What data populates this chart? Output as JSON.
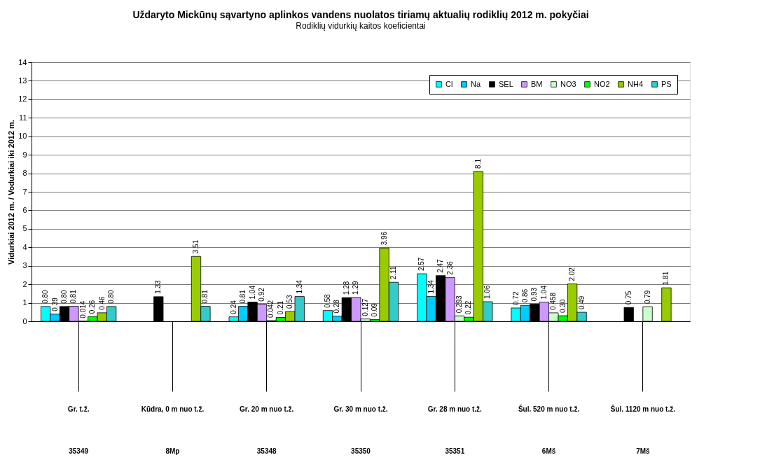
{
  "chart_data": {
    "type": "bar",
    "title": "Uždaryto Mickūnų sąvartyno aplinkos vandens nuolatos tiriamų aktualių rodiklių 2012 m. pokyčiai",
    "subtitle": "Rodiklių vidurkių kaitos koeficientai",
    "ylabel": "Vidurkiai  2012 m. / Vodurkiai iki 2012 m.",
    "categories": [
      "Gr. t.ž.\n35349",
      "Kūdra, 0 m nuo t.ž.\n8Mp",
      "Gr. 20 m nuo t.ž.\n35348",
      "Gr. 30 m nuo t.ž.\n35350",
      "Gr. 28 m nuo t.ž.\n35351",
      "Šul. 520 m nuo t.ž.\n6Mš",
      "Šul. 1120 m nuo t.ž.\n7Mš"
    ],
    "series": [
      {
        "name": "Cl",
        "color": "#00ffff",
        "values": [
          0.8,
          null,
          0.24,
          0.58,
          2.57,
          0.72,
          null
        ],
        "value_labels": [
          "0.80",
          null,
          "0.24",
          "0.58",
          "2.57",
          "0.72",
          null
        ]
      },
      {
        "name": "Na",
        "color": "#00ccff",
        "values": [
          0.39,
          null,
          0.81,
          0.28,
          1.34,
          0.86,
          null
        ],
        "value_labels": [
          "0.39",
          null,
          "0.81",
          "0.28",
          "1.34",
          "0.86",
          null
        ]
      },
      {
        "name": "SEL",
        "color": "#000000",
        "values": [
          0.8,
          1.33,
          1.04,
          1.28,
          2.47,
          0.93,
          0.75
        ],
        "value_labels": [
          "0.80",
          "1.33",
          "1.04",
          "1.28",
          "2.47",
          "0.93",
          "0.75"
        ]
      },
      {
        "name": "BM",
        "color": "#cc99ff",
        "values": [
          0.81,
          null,
          0.92,
          1.29,
          2.36,
          1.04,
          null
        ],
        "value_labels": [
          "0.81",
          null,
          "0.92",
          "1.29",
          "2.36",
          "1.04",
          null
        ]
      },
      {
        "name": "NO3",
        "color": "#ccffcc",
        "values": [
          0.014,
          null,
          0.042,
          0.127,
          0.293,
          0.458,
          0.79
        ],
        "value_labels": [
          "0.014",
          null,
          "0.042",
          "0.127",
          "0.293",
          "0.458",
          "0.79"
        ]
      },
      {
        "name": "NO2",
        "color": "#00ff00",
        "values": [
          0.26,
          null,
          0.21,
          0.09,
          0.22,
          0.3,
          null
        ],
        "value_labels": [
          "0.26",
          null,
          "0.21",
          "0.09",
          "0.22",
          "0.30",
          null
        ]
      },
      {
        "name": "NH4",
        "color": "#99cc00",
        "values": [
          0.46,
          3.51,
          0.53,
          3.96,
          8.1,
          2.02,
          1.81
        ],
        "value_labels": [
          "0.46",
          "3.51",
          "0.53",
          "3.96",
          "8.1",
          "2.02",
          "1.81"
        ]
      },
      {
        "name": "PS",
        "color": "#33cccc",
        "values": [
          0.8,
          0.81,
          1.34,
          2.11,
          1.06,
          0.49,
          null
        ],
        "value_labels": [
          "0.80",
          "0.81",
          "1.34",
          "2.11",
          "1.06",
          "0.49",
          null
        ]
      }
    ],
    "ylim": [
      0,
      14
    ],
    "yticks": [
      0,
      1,
      2,
      3,
      4,
      5,
      6,
      7,
      8,
      9,
      10,
      11,
      12,
      13,
      14
    ],
    "grid": "y",
    "legend": "top right"
  }
}
